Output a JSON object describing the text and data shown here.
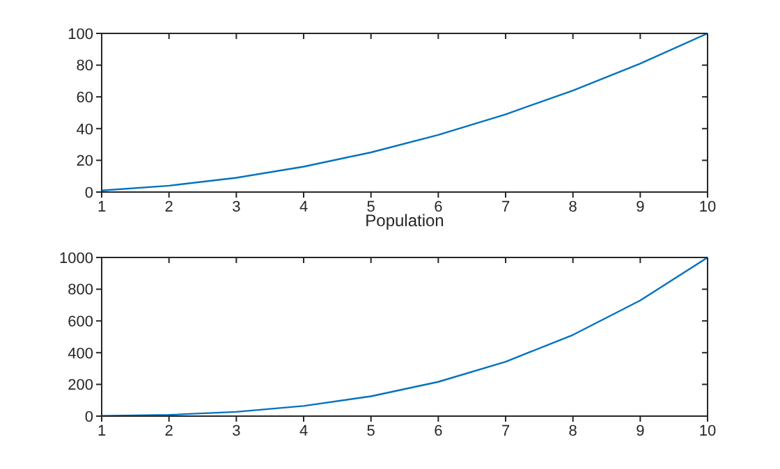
{
  "chart_data": [
    {
      "type": "line",
      "xlabel": "Population",
      "x": [
        1,
        2,
        3,
        4,
        5,
        6,
        7,
        8,
        9,
        10
      ],
      "values": [
        1,
        4,
        9,
        16,
        25,
        36,
        49,
        64,
        81,
        100
      ],
      "color": "#0072bd",
      "xlim": [
        1,
        10
      ],
      "xticks": [
        1,
        2,
        3,
        4,
        5,
        6,
        7,
        8,
        9,
        10
      ],
      "ylim": [
        0,
        100
      ],
      "yticks": [
        0,
        20,
        40,
        60,
        80,
        100
      ]
    },
    {
      "type": "line",
      "x": [
        1,
        2,
        3,
        4,
        5,
        6,
        7,
        8,
        9,
        10
      ],
      "values": [
        1,
        8,
        27,
        64,
        125,
        216,
        343,
        512,
        729,
        1000
      ],
      "color": "#0072bd",
      "xlim": [
        1,
        10
      ],
      "xticks": [
        1,
        2,
        3,
        4,
        5,
        6,
        7,
        8,
        9,
        10
      ],
      "ylim": [
        0,
        1000
      ],
      "yticks": [
        0,
        200,
        400,
        600,
        800,
        1000
      ]
    }
  ]
}
